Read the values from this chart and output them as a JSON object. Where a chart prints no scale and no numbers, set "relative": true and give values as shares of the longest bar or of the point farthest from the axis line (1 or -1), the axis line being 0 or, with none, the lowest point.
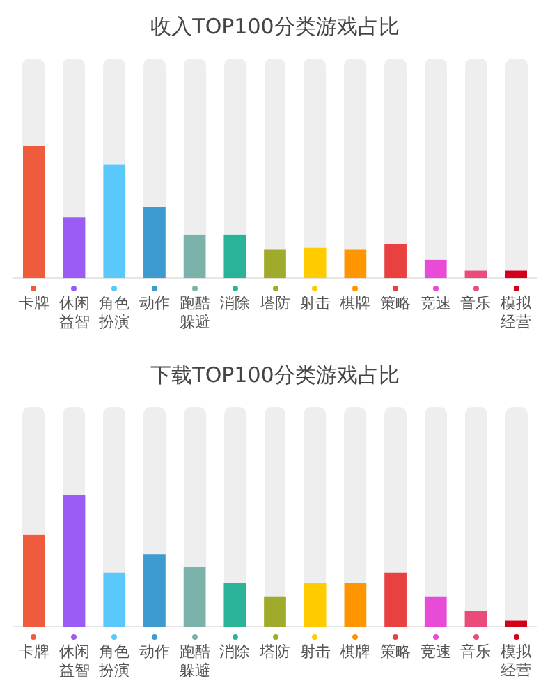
{
  "chart_data": [
    {
      "type": "bar",
      "title": "收入TOP100分类游戏占比",
      "relative": true,
      "legend": false,
      "categories": [
        "卡牌",
        "休闲益智",
        "角色扮演",
        "动作",
        "跑酷躲避",
        "消除",
        "塔防",
        "射击",
        "棋牌",
        "策略",
        "竞速",
        "音乐",
        "模拟经营"
      ],
      "values": [
        1,
        0.46,
        0.86,
        0.54,
        0.33,
        0.33,
        0.22,
        0.23,
        0.22,
        0.26,
        0.14,
        0.057,
        0.057
      ],
      "colors": [
        "#ee5b3d",
        "#9b5cf5",
        "#5ac8fa",
        "#3d9bd0",
        "#7bb3ab",
        "#2bb39a",
        "#a0ab2b",
        "#ffcc00",
        "#ff9500",
        "#e94040",
        "#e84bd6",
        "#e94b7a",
        "#d0021b"
      ]
    },
    {
      "type": "bar",
      "title": "下载TOP100分类游戏占比",
      "relative": true,
      "legend": false,
      "categories": [
        "卡牌",
        "休闲益智",
        "角色扮演",
        "动作",
        "跑酷躲避",
        "消除",
        "塔防",
        "射击",
        "棋牌",
        "策略",
        "竞速",
        "音乐",
        "模拟经营"
      ],
      "values": [
        0.7,
        1,
        0.41,
        0.55,
        0.45,
        0.33,
        0.23,
        0.33,
        0.33,
        0.41,
        0.23,
        0.12,
        0.046
      ],
      "colors": [
        "#ee5b3d",
        "#9b5cf5",
        "#5ac8fa",
        "#3d9bd0",
        "#7bb3ab",
        "#2bb39a",
        "#a0ab2b",
        "#ffcc00",
        "#ff9500",
        "#e94040",
        "#e84bd6",
        "#e94b7a",
        "#d0021b"
      ]
    }
  ]
}
